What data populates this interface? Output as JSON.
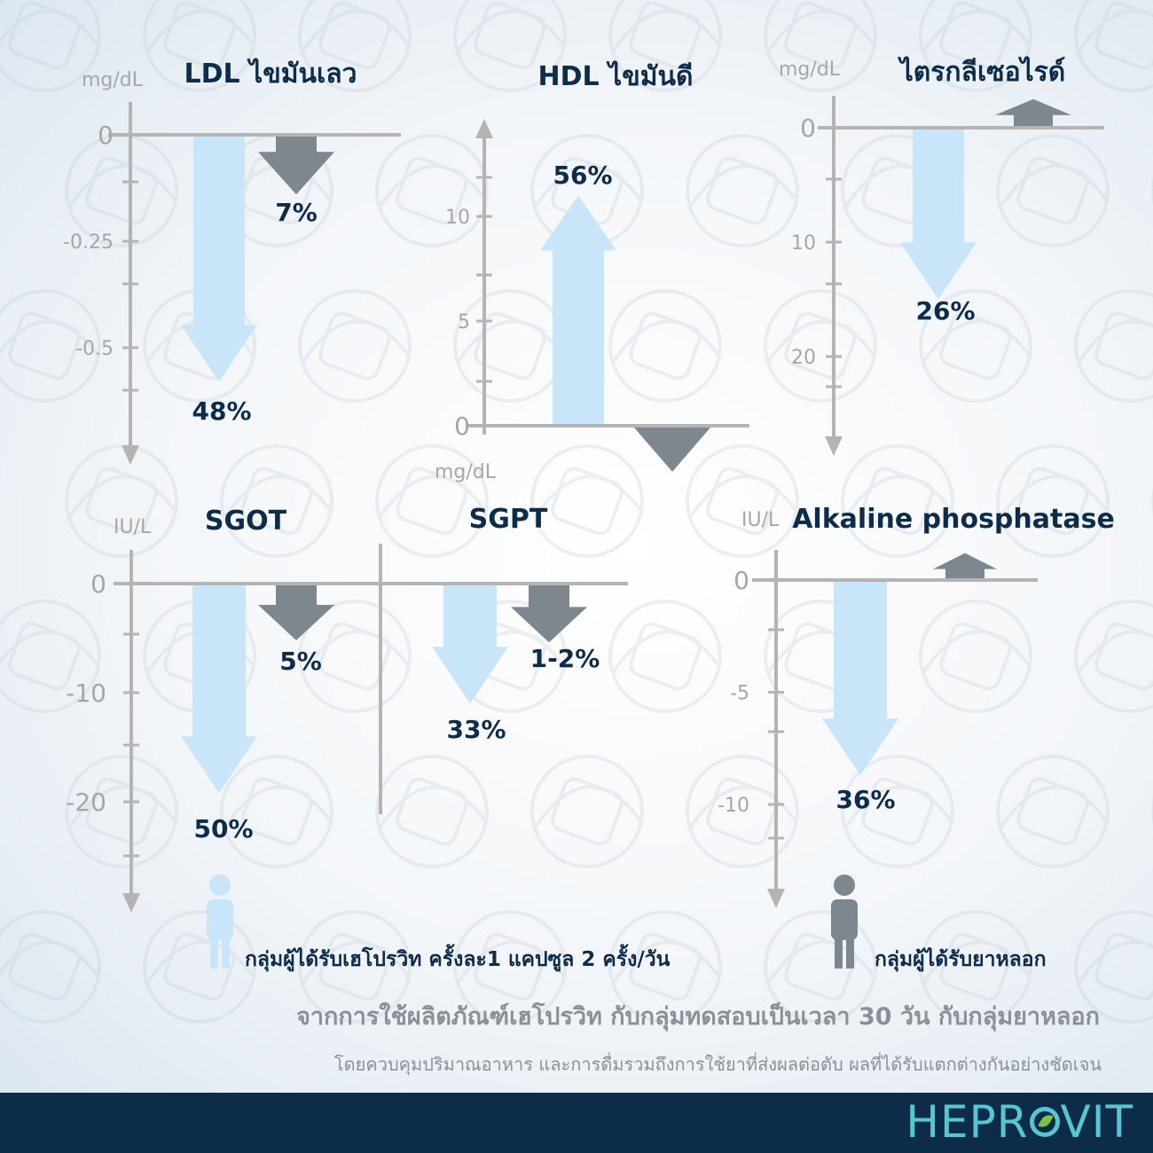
{
  "colors": {
    "treatment": "#c9e5fa",
    "placebo": "#7e878d",
    "axis": "#b4b4b4",
    "text_dark": "#0d2c4a",
    "footer_bg": "#0d2c4a",
    "brand": "#56c7d2"
  },
  "charts": {
    "ldl": {
      "title": "LDL ไขมันเลว",
      "unit": "mg/dL"
    },
    "hdl": {
      "title": "HDL ไขมันดี",
      "unit": "mg/dL"
    },
    "tg": {
      "title": "ไตรกลีเซอไรด์",
      "unit": "mg/dL"
    },
    "sgot": {
      "title": "SGOT",
      "unit": "IU/L"
    },
    "sgpt": {
      "title": "SGPT"
    },
    "alp": {
      "title": "Alkaline phosphatase",
      "unit": "IU/L"
    }
  },
  "chart_data": [
    {
      "id": "ldl",
      "type": "bar",
      "title": "LDL ไขมันเลว",
      "ylabel": "mg/dL",
      "y_ticks": [
        {
          "v": 0,
          "label": "0"
        },
        {
          "v": -0.25,
          "label": "-0.25"
        },
        {
          "v": -0.5,
          "label": "-0.5"
        }
      ],
      "ylim": [
        -0.78,
        0
      ],
      "series": [
        {
          "group": "treatment",
          "value": -0.58,
          "label": "48%"
        },
        {
          "group": "placebo",
          "value": -0.14,
          "label": "7%"
        }
      ]
    },
    {
      "id": "hdl",
      "type": "bar",
      "title": "HDL ไขมันดี",
      "ylabel": "mg/dL",
      "y_ticks": [
        {
          "v": 0,
          "label": "0"
        },
        {
          "v": 5,
          "label": "5"
        },
        {
          "v": 10,
          "label": "10"
        }
      ],
      "ylim": [
        0,
        14.5
      ],
      "series": [
        {
          "group": "treatment",
          "value": 11,
          "label": "56%"
        },
        {
          "group": "placebo",
          "value": -2.2,
          "label": ""
        }
      ]
    },
    {
      "id": "tg",
      "type": "bar",
      "title": "ไตรกลีเซอไรด์",
      "ylabel": "mg/dL",
      "y_ticks": [
        {
          "v": 0,
          "label": "0"
        },
        {
          "v": 10,
          "label": "10"
        },
        {
          "v": 20,
          "label": "20"
        }
      ],
      "ylim": [
        -29,
        0
      ],
      "series": [
        {
          "group": "treatment",
          "value": -15,
          "label": "26%"
        },
        {
          "group": "placebo",
          "value": 2.5,
          "label": ""
        }
      ]
    },
    {
      "id": "sgot",
      "type": "bar",
      "title": "SGOT",
      "ylabel": "IU/L",
      "y_ticks": [
        {
          "v": 0,
          "label": "0"
        },
        {
          "v": -10,
          "label": "-10"
        },
        {
          "v": -20,
          "label": "-20"
        }
      ],
      "ylim": [
        -28,
        0
      ],
      "series": [
        {
          "group": "treatment",
          "value": -19.2,
          "label": "50%"
        },
        {
          "group": "placebo",
          "value": -5.2,
          "label": "5%"
        }
      ]
    },
    {
      "id": "sgpt",
      "type": "bar",
      "title": "SGPT",
      "series": [
        {
          "group": "treatment",
          "value": -11,
          "label": "33%"
        },
        {
          "group": "placebo",
          "value": -5.4,
          "label": "1-2%"
        }
      ]
    },
    {
      "id": "alp",
      "type": "bar",
      "title": "Alkaline phosphatase",
      "ylabel": "IU/L",
      "y_ticks": [
        {
          "v": 0,
          "label": "0"
        },
        {
          "v": -5,
          "label": "-5"
        },
        {
          "v": -10,
          "label": "-10"
        }
      ],
      "ylim": [
        -13,
        0
      ],
      "series": [
        {
          "group": "treatment",
          "value": -8.7,
          "label": "36%"
        },
        {
          "group": "placebo",
          "value": 1.2,
          "label": ""
        }
      ]
    }
  ],
  "legend": {
    "treatment": "กลุ่มผู้ได้รับเฮโปรวิท ครั้งละ1 แคปซูล 2 ครั้ง/วัน",
    "placebo": "กลุ่มผู้ได้รับยาหลอก"
  },
  "footnote": {
    "line1": "จากการใช้ผลิตภัณฑ์เฮโปรวิท กับกลุ่มทดสอบเป็นเวลา 30 วัน กับกลุ่มยาหลอก",
    "line2": "โดยควบคุมปริมาณอาหาร และการดื่มรวมถึงการใช้ยาที่ส่งผลต่อตับ ผลที่ได้รับแตกต่างกันอย่างชัดเจน"
  },
  "brand": {
    "left": "HEPR",
    "right": "VIT"
  }
}
